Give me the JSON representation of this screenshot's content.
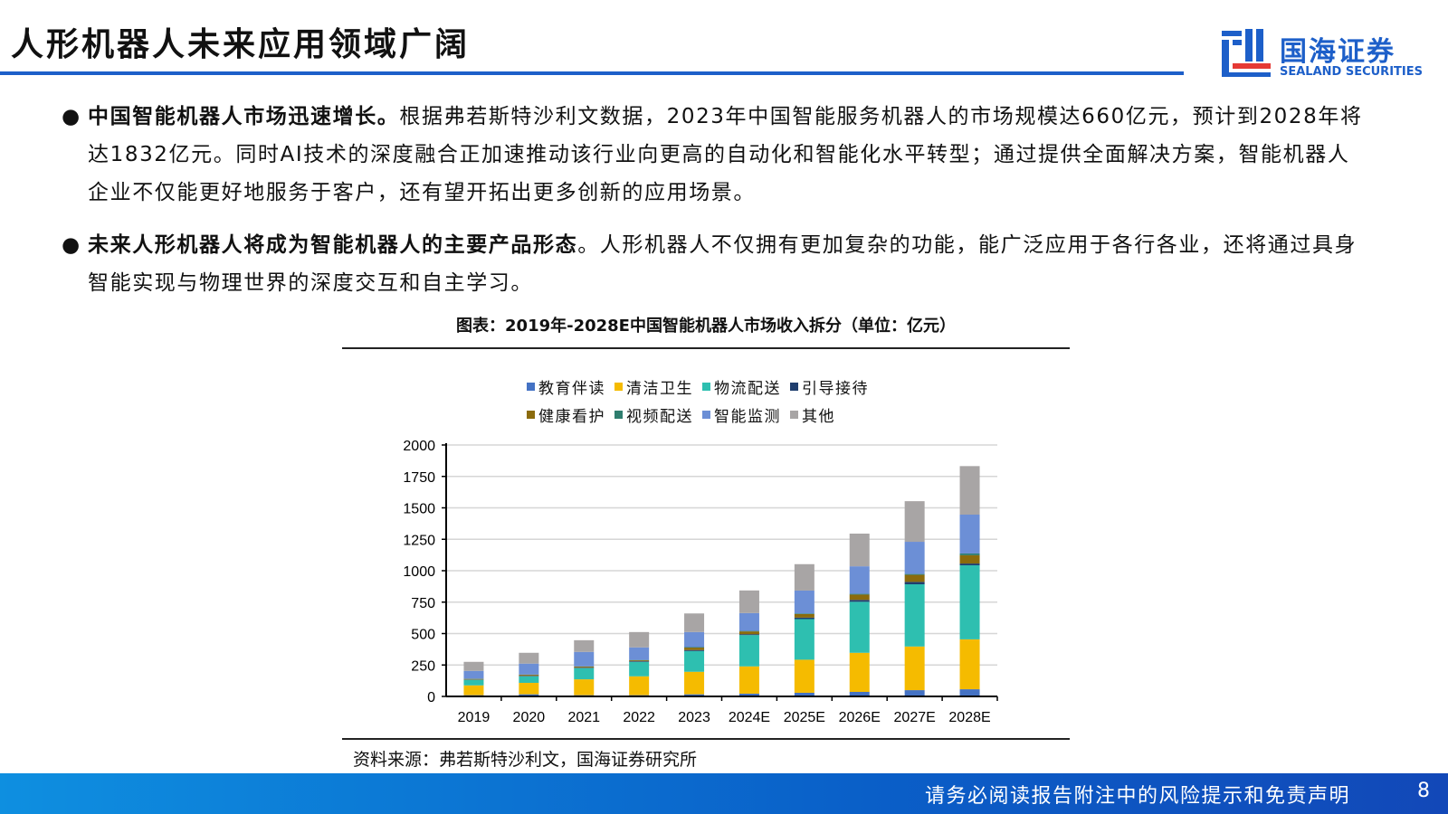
{
  "header": {
    "title": "人形机器人未来应用领域广阔",
    "logo_cn": "国海证券",
    "logo_en": "SEALAND SECURITIES"
  },
  "bullets": [
    {
      "bold": "中国智能机器人市场迅速增长。",
      "text": "根据弗若斯特沙利文数据，2023年中国智能服务机器人的市场规模达660亿元，预计到2028年将达1832亿元。同时AI技术的深度融合正加速推动该行业向更高的自动化和智能化水平转型；通过提供全面解决方案，智能机器人企业不仅能更好地服务于客户，还有望开拓出更多创新的应用场景。"
    },
    {
      "bold": "未来人形机器人将成为智能机器人的主要产品形态",
      "text": "。人形机器人不仅拥有更加复杂的功能，能广泛应用于各行各业，还将通过具身智能实现与物理世界的深度交互和自主学习。"
    }
  ],
  "chart_data": {
    "type": "bar",
    "stacked": true,
    "title": "图表：2019年-2028E中国智能机器人市场收入拆分（单位：亿元）",
    "categories": [
      "2019",
      "2020",
      "2021",
      "2022",
      "2023",
      "2024E",
      "2025E",
      "2026E",
      "2027E",
      "2028E"
    ],
    "ylim": [
      0,
      2000
    ],
    "yticks": [
      "0",
      "250",
      "500",
      "750",
      "1000",
      "1250",
      "1500",
      "1750",
      "2000"
    ],
    "legend_position": "top",
    "grid": true,
    "series": [
      {
        "name": "教育伴读",
        "color": "#4472c4",
        "values": [
          10,
          17,
          10,
          10,
          17,
          22,
          29,
          36,
          50,
          57
        ]
      },
      {
        "name": "清洁卫生",
        "color": "#f5bb00",
        "values": [
          78,
          91,
          126,
          150,
          179,
          217,
          263,
          311,
          347,
          397
        ]
      },
      {
        "name": "物流配送",
        "color": "#2ebfb0",
        "values": [
          44,
          52,
          89,
          115,
          165,
          249,
          323,
          406,
          495,
          589
        ]
      },
      {
        "name": "引导接待",
        "color": "#1f3e6e",
        "values": [
          2,
          4,
          4,
          5,
          8,
          7,
          12,
          15,
          19,
          14
        ]
      },
      {
        "name": "健康看护",
        "color": "#8b6b0c",
        "values": [
          5,
          8,
          8,
          7,
          19,
          22,
          28,
          42,
          56,
          66
        ]
      },
      {
        "name": "视频配送",
        "color": "#2e7d6e",
        "values": [
          2,
          2,
          2,
          3,
          4,
          4,
          5,
          6,
          7,
          14
        ]
      },
      {
        "name": "智能监测",
        "color": "#6c8fd6",
        "values": [
          62,
          87,
          115,
          100,
          120,
          142,
          182,
          219,
          256,
          309
        ]
      },
      {
        "name": "其他",
        "color": "#a8a5a5",
        "values": [
          72,
          86,
          93,
          122,
          148,
          180,
          210,
          260,
          323,
          386
        ]
      }
    ]
  },
  "source": "资料来源：弗若斯特沙利文，国海证券研究所",
  "footer": {
    "disclaimer": "请务必阅读报告附注中的风险提示和免责声明",
    "page": "8"
  }
}
